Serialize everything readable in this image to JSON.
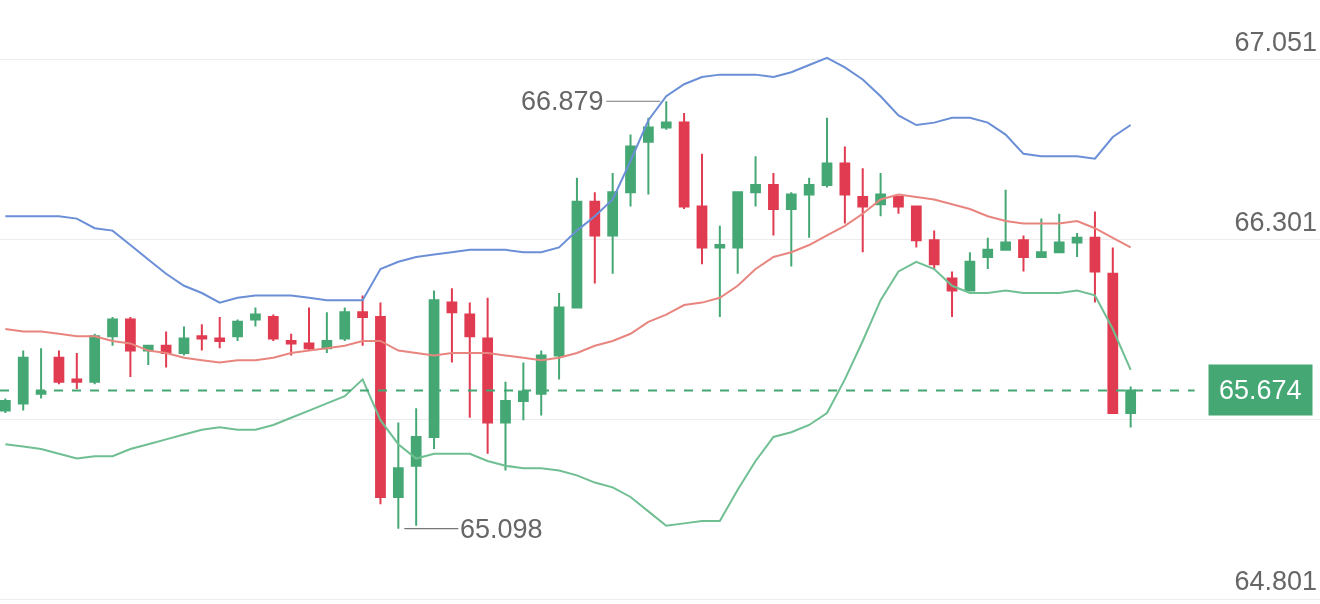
{
  "chart_data": {
    "type": "candlestick",
    "categories": [
      null,
      null,
      null,
      null,
      null,
      null,
      null,
      null,
      null,
      null,
      null,
      null,
      null,
      null,
      null,
      null,
      null,
      null,
      null,
      null,
      null,
      null,
      null,
      null,
      null,
      null,
      null,
      null,
      null,
      null,
      null,
      null,
      null,
      null,
      null,
      null,
      null,
      null,
      null,
      null,
      null,
      null,
      null,
      null,
      null,
      null,
      null,
      null,
      null,
      null,
      null,
      null,
      null,
      null,
      null,
      null,
      null,
      null,
      null,
      null,
      null,
      null,
      null,
      null
    ],
    "ohlc": [
      [
        65.59,
        65.64,
        65.58,
        65.63
      ],
      [
        65.62,
        65.84,
        65.59,
        65.81
      ],
      [
        65.66,
        65.85,
        65.64,
        65.67
      ],
      [
        65.81,
        65.84,
        65.7,
        65.71
      ],
      [
        65.72,
        65.83,
        65.68,
        65.71
      ],
      [
        65.71,
        65.91,
        65.7,
        65.9
      ],
      [
        65.9,
        65.98,
        65.86,
        65.97
      ],
      [
        65.97,
        65.98,
        65.73,
        65.84
      ],
      [
        65.84,
        65.86,
        65.78,
        65.86
      ],
      [
        65.86,
        65.92,
        65.77,
        65.83
      ],
      [
        65.83,
        65.94,
        65.82,
        65.89
      ],
      [
        65.9,
        65.95,
        65.84,
        65.89
      ],
      [
        65.89,
        65.98,
        65.85,
        65.88
      ],
      [
        65.9,
        65.97,
        65.88,
        65.96
      ],
      [
        65.97,
        66.02,
        65.94,
        65.99
      ],
      [
        65.98,
        65.99,
        65.88,
        65.89
      ],
      [
        65.88,
        65.91,
        65.82,
        65.87
      ],
      [
        65.87,
        66.02,
        65.84,
        65.85
      ],
      [
        65.85,
        66.0,
        65.83,
        65.88
      ],
      [
        65.89,
        66.02,
        65.88,
        66.0
      ],
      [
        66.0,
        66.07,
        65.86,
        65.98
      ],
      [
        65.98,
        66.04,
        65.2,
        65.23
      ],
      [
        65.23,
        65.54,
        65.098,
        65.35
      ],
      [
        65.36,
        65.6,
        65.11,
        65.48
      ],
      [
        65.48,
        66.09,
        65.43,
        66.05
      ],
      [
        66.04,
        66.1,
        65.79,
        66.0
      ],
      [
        65.99,
        66.04,
        65.56,
        65.9
      ],
      [
        65.89,
        66.06,
        65.41,
        65.54
      ],
      [
        65.54,
        65.71,
        65.34,
        65.63
      ],
      [
        65.63,
        65.79,
        65.55,
        65.67
      ],
      [
        65.66,
        65.84,
        65.57,
        65.82
      ],
      [
        65.82,
        66.08,
        65.72,
        66.02
      ],
      [
        66.02,
        66.56,
        66.02,
        66.46
      ],
      [
        66.46,
        66.5,
        66.12,
        66.32
      ],
      [
        66.32,
        66.58,
        66.16,
        66.5
      ],
      [
        66.5,
        66.74,
        66.44,
        66.69
      ],
      [
        66.71,
        66.81,
        66.49,
        66.77
      ],
      [
        66.77,
        66.879,
        66.76,
        66.79
      ],
      [
        66.79,
        66.83,
        66.43,
        66.44
      ],
      [
        66.44,
        66.66,
        66.2,
        66.27
      ],
      [
        66.27,
        66.36,
        65.98,
        66.28
      ],
      [
        66.27,
        66.5,
        66.16,
        66.5
      ],
      [
        66.5,
        66.65,
        66.44,
        66.53
      ],
      [
        66.53,
        66.58,
        66.32,
        66.43
      ],
      [
        66.43,
        66.5,
        66.19,
        66.49
      ],
      [
        66.49,
        66.56,
        66.31,
        66.53
      ],
      [
        66.53,
        66.81,
        66.52,
        66.62
      ],
      [
        66.62,
        66.69,
        66.37,
        66.49
      ],
      [
        66.48,
        66.6,
        66.25,
        66.44
      ],
      [
        66.45,
        66.58,
        66.4,
        66.49
      ],
      [
        66.48,
        66.48,
        66.41,
        66.44
      ],
      [
        66.44,
        66.44,
        66.27,
        66.3
      ],
      [
        66.3,
        66.34,
        66.18,
        66.2
      ],
      [
        66.14,
        66.17,
        65.98,
        66.09
      ],
      [
        66.09,
        66.25,
        66.09,
        66.21
      ],
      [
        66.23,
        66.31,
        66.18,
        66.26
      ],
      [
        66.26,
        66.51,
        66.26,
        66.29
      ],
      [
        66.3,
        66.32,
        66.17,
        66.23
      ],
      [
        66.23,
        66.39,
        66.23,
        66.25
      ],
      [
        66.25,
        66.41,
        66.25,
        66.29
      ],
      [
        66.29,
        66.33,
        66.23,
        66.31
      ],
      [
        66.31,
        66.42,
        66.04,
        66.17
      ],
      [
        66.16,
        66.27,
        65.58,
        65.58
      ],
      [
        65.58,
        65.69,
        65.52,
        65.674
      ]
    ],
    "colors": [
      "#45a874",
      "#45a874",
      "#45a874",
      "#e03b50",
      "#e03b50",
      "#45a874",
      "#45a874",
      "#e03b50",
      "#45a874",
      "#e03b50",
      "#45a874",
      "#e03b50",
      "#e03b50",
      "#45a874",
      "#45a874",
      "#e03b50",
      "#e03b50",
      "#e03b50",
      "#45a874",
      "#45a874",
      "#e03b50",
      "#e03b50",
      "#45a874",
      "#45a874",
      "#45a874",
      "#e03b50",
      "#e03b50",
      "#e03b50",
      "#45a874",
      "#45a874",
      "#45a874",
      "#45a874",
      "#45a874",
      "#e03b50",
      "#45a874",
      "#45a874",
      "#45a874",
      "#45a874",
      "#e03b50",
      "#e03b50",
      "#45a874",
      "#45a874",
      "#45a874",
      "#e03b50",
      "#45a874",
      "#45a874",
      "#45a874",
      "#e03b50",
      "#e03b50",
      "#45a874",
      "#e03b50",
      "#e03b50",
      "#e03b50",
      "#e03b50",
      "#45a874",
      "#45a874",
      "#45a874",
      "#e03b50",
      "#45a874",
      "#45a874",
      "#45a874",
      "#e03b50",
      "#e03b50",
      "#45a874"
    ],
    "series": [
      {
        "type": "line",
        "color": "#6b8fd6",
        "values": [
          66.4,
          66.4,
          66.4,
          66.4,
          66.39,
          66.35,
          66.34,
          66.28,
          66.22,
          66.16,
          66.11,
          66.08,
          66.04,
          66.06,
          66.07,
          66.07,
          66.07,
          66.06,
          66.05,
          66.05,
          66.05,
          66.18,
          66.21,
          66.23,
          66.24,
          66.25,
          66.26,
          66.26,
          66.26,
          66.25,
          66.25,
          66.27,
          66.34,
          66.4,
          66.47,
          66.63,
          66.8,
          66.9,
          66.95,
          66.98,
          66.99,
          66.99,
          66.99,
          66.98,
          67.0,
          67.03,
          67.06,
          67.02,
          66.97,
          66.9,
          66.82,
          66.78,
          66.79,
          66.81,
          66.81,
          66.79,
          66.74,
          66.66,
          66.65,
          66.65,
          66.65,
          66.64,
          66.73,
          66.78
        ]
      },
      {
        "type": "line",
        "color": "#e8857f",
        "values": [
          65.93,
          65.92,
          65.92,
          65.91,
          65.9,
          65.9,
          65.88,
          65.87,
          65.84,
          65.83,
          65.81,
          65.8,
          65.79,
          65.8,
          65.8,
          65.81,
          65.83,
          65.84,
          65.85,
          65.86,
          65.88,
          65.88,
          65.84,
          65.83,
          65.82,
          65.83,
          65.83,
          65.83,
          65.82,
          65.81,
          65.8,
          65.81,
          65.83,
          65.86,
          65.88,
          65.91,
          65.96,
          65.99,
          66.03,
          66.04,
          66.06,
          66.11,
          66.18,
          66.23,
          66.25,
          66.28,
          66.32,
          66.36,
          66.41,
          66.47,
          66.49,
          66.48,
          66.47,
          66.45,
          66.43,
          66.4,
          66.38,
          66.37,
          66.37,
          66.37,
          66.38,
          66.35,
          66.31,
          66.27
        ]
      },
      {
        "type": "line",
        "color": "#6fbf92",
        "values": [
          65.45,
          65.44,
          65.43,
          65.41,
          65.39,
          65.4,
          65.4,
          65.43,
          65.45,
          65.47,
          65.49,
          65.51,
          65.52,
          65.51,
          65.51,
          65.53,
          65.56,
          65.59,
          65.62,
          65.65,
          65.72,
          65.55,
          65.45,
          65.39,
          65.41,
          65.41,
          65.41,
          65.38,
          65.36,
          65.35,
          65.35,
          65.34,
          65.32,
          65.29,
          65.27,
          65.23,
          65.17,
          65.11,
          65.12,
          65.13,
          65.13,
          65.26,
          65.38,
          65.48,
          65.5,
          65.53,
          65.58,
          65.72,
          65.88,
          66.05,
          66.17,
          66.21,
          66.18,
          66.11,
          66.08,
          66.08,
          66.09,
          66.08,
          66.08,
          66.08,
          66.09,
          66.07,
          65.93,
          65.76
        ]
      }
    ],
    "ylim": [
      64.784,
      67.301
    ],
    "yticks": [
      64.801,
      {
        "value": 65.551,
        "label": null
      },
      66.301,
      67.051
    ],
    "grid": "y",
    "tick_labels": "y",
    "ref_lines": [
      {
        "axis": "y",
        "value": 65.674,
        "label": "65.674",
        "color": "#45a874",
        "line_style": "dashed"
      }
    ],
    "annotations": [
      "66.879",
      "65.098"
    ]
  }
}
